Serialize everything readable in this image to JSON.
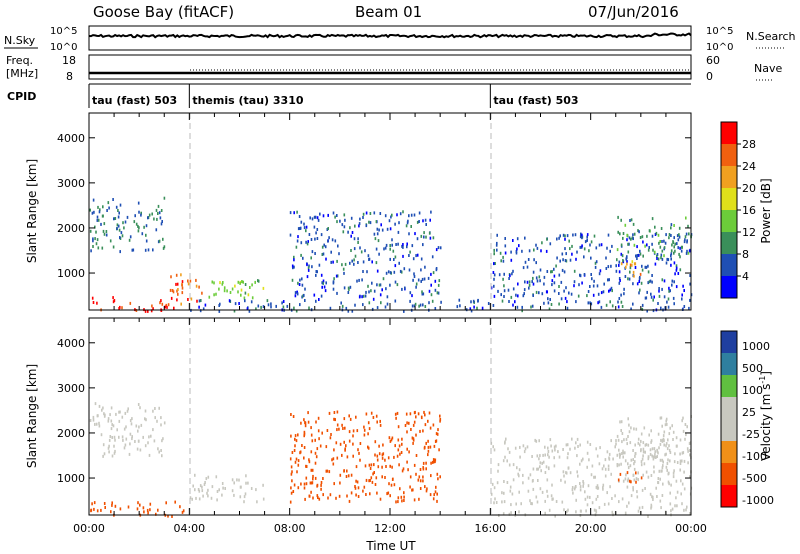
{
  "header": {
    "station": "Goose Bay (fitACF)",
    "beam": "Beam 01",
    "date": "07/Jun/2016"
  },
  "noise_panel": {
    "left_label": "N.Sky",
    "left_ticks": [
      "10^5",
      "10^0"
    ],
    "right_ticks": [
      "10^5",
      "10^0"
    ],
    "right_label": "N.Search"
  },
  "freq_panel": {
    "left_label_line1": "Freq.",
    "left_label_line2": "[MHz]",
    "left_ticks": [
      "18",
      "8"
    ],
    "right_ticks": [
      "60",
      "0"
    ],
    "right_label": "Nave"
  },
  "cpid_panel": {
    "label": "CPID",
    "segments": [
      {
        "name": "tau (fast) 503",
        "start_hour": 0
      },
      {
        "name": "themis (tau) 3310",
        "start_hour": 4
      },
      {
        "name": "tau (fast) 503",
        "start_hour": 16
      }
    ]
  },
  "colors": {
    "power_scale": [
      "#0000ff",
      "#1f4fb4",
      "#3a8f5a",
      "#6ccc3a",
      "#e0e01a",
      "#f0a020",
      "#f06010",
      "#ff0000"
    ],
    "velocity_scale": [
      "#ff0000",
      "#f05000",
      "#f09018",
      "#c8c8c0",
      "#c8c8c0",
      "#60c040",
      "#2f7f9f",
      "#1f3fa0"
    ]
  },
  "chart_data": [
    {
      "type": "heatmap",
      "title": "",
      "ylabel": "Slant Range [km]",
      "xlabel": "",
      "xlim": [
        0,
        24
      ],
      "ylim": [
        180,
        4550
      ],
      "yticks": [
        "1000",
        "2000",
        "3000",
        "4000"
      ],
      "colorbar": {
        "label": "Power [dB]",
        "range": [
          0,
          32
        ],
        "ticks": [
          "4",
          "8",
          "12",
          "16",
          "20",
          "24",
          "28"
        ]
      },
      "regions": [
        {
          "t_start": 0.0,
          "t_end": 3.0,
          "r_start": 1500,
          "r_end": 2700,
          "value": 8
        },
        {
          "t_start": 0.0,
          "t_end": 3.5,
          "r_start": 180,
          "r_end": 500,
          "value": 28
        },
        {
          "t_start": 3.2,
          "t_end": 4.6,
          "r_start": 300,
          "r_end": 1000,
          "value": 26
        },
        {
          "t_start": 4.6,
          "t_end": 7.0,
          "r_start": 400,
          "r_end": 900,
          "value": 14
        },
        {
          "t_start": 4.0,
          "t_end": 16.0,
          "r_start": 180,
          "r_end": 450,
          "value": 6
        },
        {
          "t_start": 8.0,
          "t_end": 14.0,
          "r_start": 500,
          "r_end": 2400,
          "value": 6
        },
        {
          "t_start": 16.0,
          "t_end": 24.0,
          "r_start": 180,
          "r_end": 1900,
          "value": 6
        },
        {
          "t_start": 21.0,
          "t_end": 24.0,
          "r_start": 1300,
          "r_end": 2300,
          "value": 10
        },
        {
          "t_start": 21.0,
          "t_end": 22.0,
          "r_start": 900,
          "r_end": 1300,
          "value": 22
        }
      ]
    },
    {
      "type": "heatmap",
      "title": "",
      "ylabel": "Slant Range [km]",
      "xlabel": "Time UT",
      "xlim": [
        0,
        24
      ],
      "ylim": [
        180,
        4550
      ],
      "xticks": [
        "00:00",
        "04:00",
        "08:00",
        "12:00",
        "16:00",
        "20:00",
        "00:00"
      ],
      "yticks": [
        "1000",
        "2000",
        "3000",
        "4000"
      ],
      "colorbar": {
        "label": "Velocity [m s",
        "label_superscript": "-1",
        "label_close": "]",
        "ticks": [
          "1000",
          "500",
          "100",
          "25",
          "-25",
          "-100",
          "-500",
          "-1000"
        ]
      },
      "regions": [
        {
          "t_start": 0.0,
          "t_end": 3.0,
          "r_start": 1500,
          "r_end": 2700,
          "value": 0
        },
        {
          "t_start": 0.0,
          "t_end": 4.0,
          "r_start": 180,
          "r_end": 500,
          "value": -150
        },
        {
          "t_start": 4.0,
          "t_end": 7.0,
          "r_start": 500,
          "r_end": 1100,
          "value": 0
        },
        {
          "t_start": 8.0,
          "t_end": 14.0,
          "r_start": 500,
          "r_end": 2500,
          "value": -120
        },
        {
          "t_start": 13.0,
          "t_end": 14.0,
          "r_start": 2300,
          "r_end": 2500,
          "value": -300
        },
        {
          "t_start": 16.0,
          "t_end": 24.0,
          "r_start": 180,
          "r_end": 1900,
          "value": 60
        },
        {
          "t_start": 21.0,
          "t_end": 24.0,
          "r_start": 1300,
          "r_end": 2400,
          "value": 0
        },
        {
          "t_start": 21.0,
          "t_end": 22.0,
          "r_start": 900,
          "r_end": 1200,
          "value": -400
        }
      ]
    }
  ]
}
